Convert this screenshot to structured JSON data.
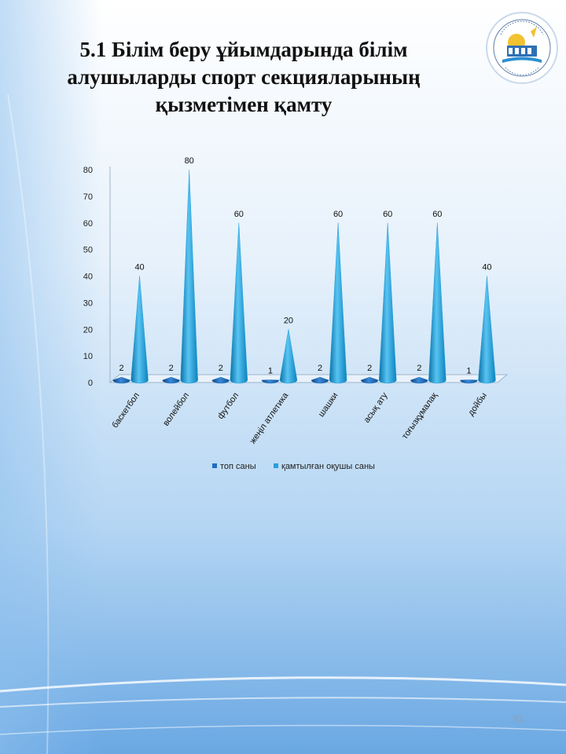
{
  "slide": {
    "title_lines": [
      "5.1 Білім беру ұйымдарында білім",
      "алушыларды спорт секцияларының",
      "қызметімен қамту"
    ],
    "page_number": "93",
    "logo_icon": "school-emblem-icon"
  },
  "colors": {
    "series1": "#1f6fc0",
    "series2": "#2aa0d8",
    "background_top": "#ffffff",
    "background_bottom": "#7fb6e8"
  },
  "chart_data": {
    "type": "bar",
    "bar_shape": "cone-3d",
    "categories": [
      "баскетбол",
      "волейбол",
      "футбол",
      "жеңіл атлетика",
      "шашки",
      "асық ату",
      "тоғызқұмалақ",
      "дойбы"
    ],
    "series": [
      {
        "name": "топ саны",
        "values": [
          2,
          2,
          2,
          1,
          2,
          2,
          2,
          1
        ]
      },
      {
        "name": "қамтылған оқушы саны",
        "values": [
          40,
          80,
          60,
          20,
          60,
          60,
          60,
          40
        ]
      }
    ],
    "ylim": [
      0,
      80
    ],
    "yticks": [
      0,
      10,
      20,
      30,
      40,
      50,
      60,
      70,
      80
    ],
    "data_labels": true,
    "grid": false,
    "legend_position": "bottom"
  }
}
